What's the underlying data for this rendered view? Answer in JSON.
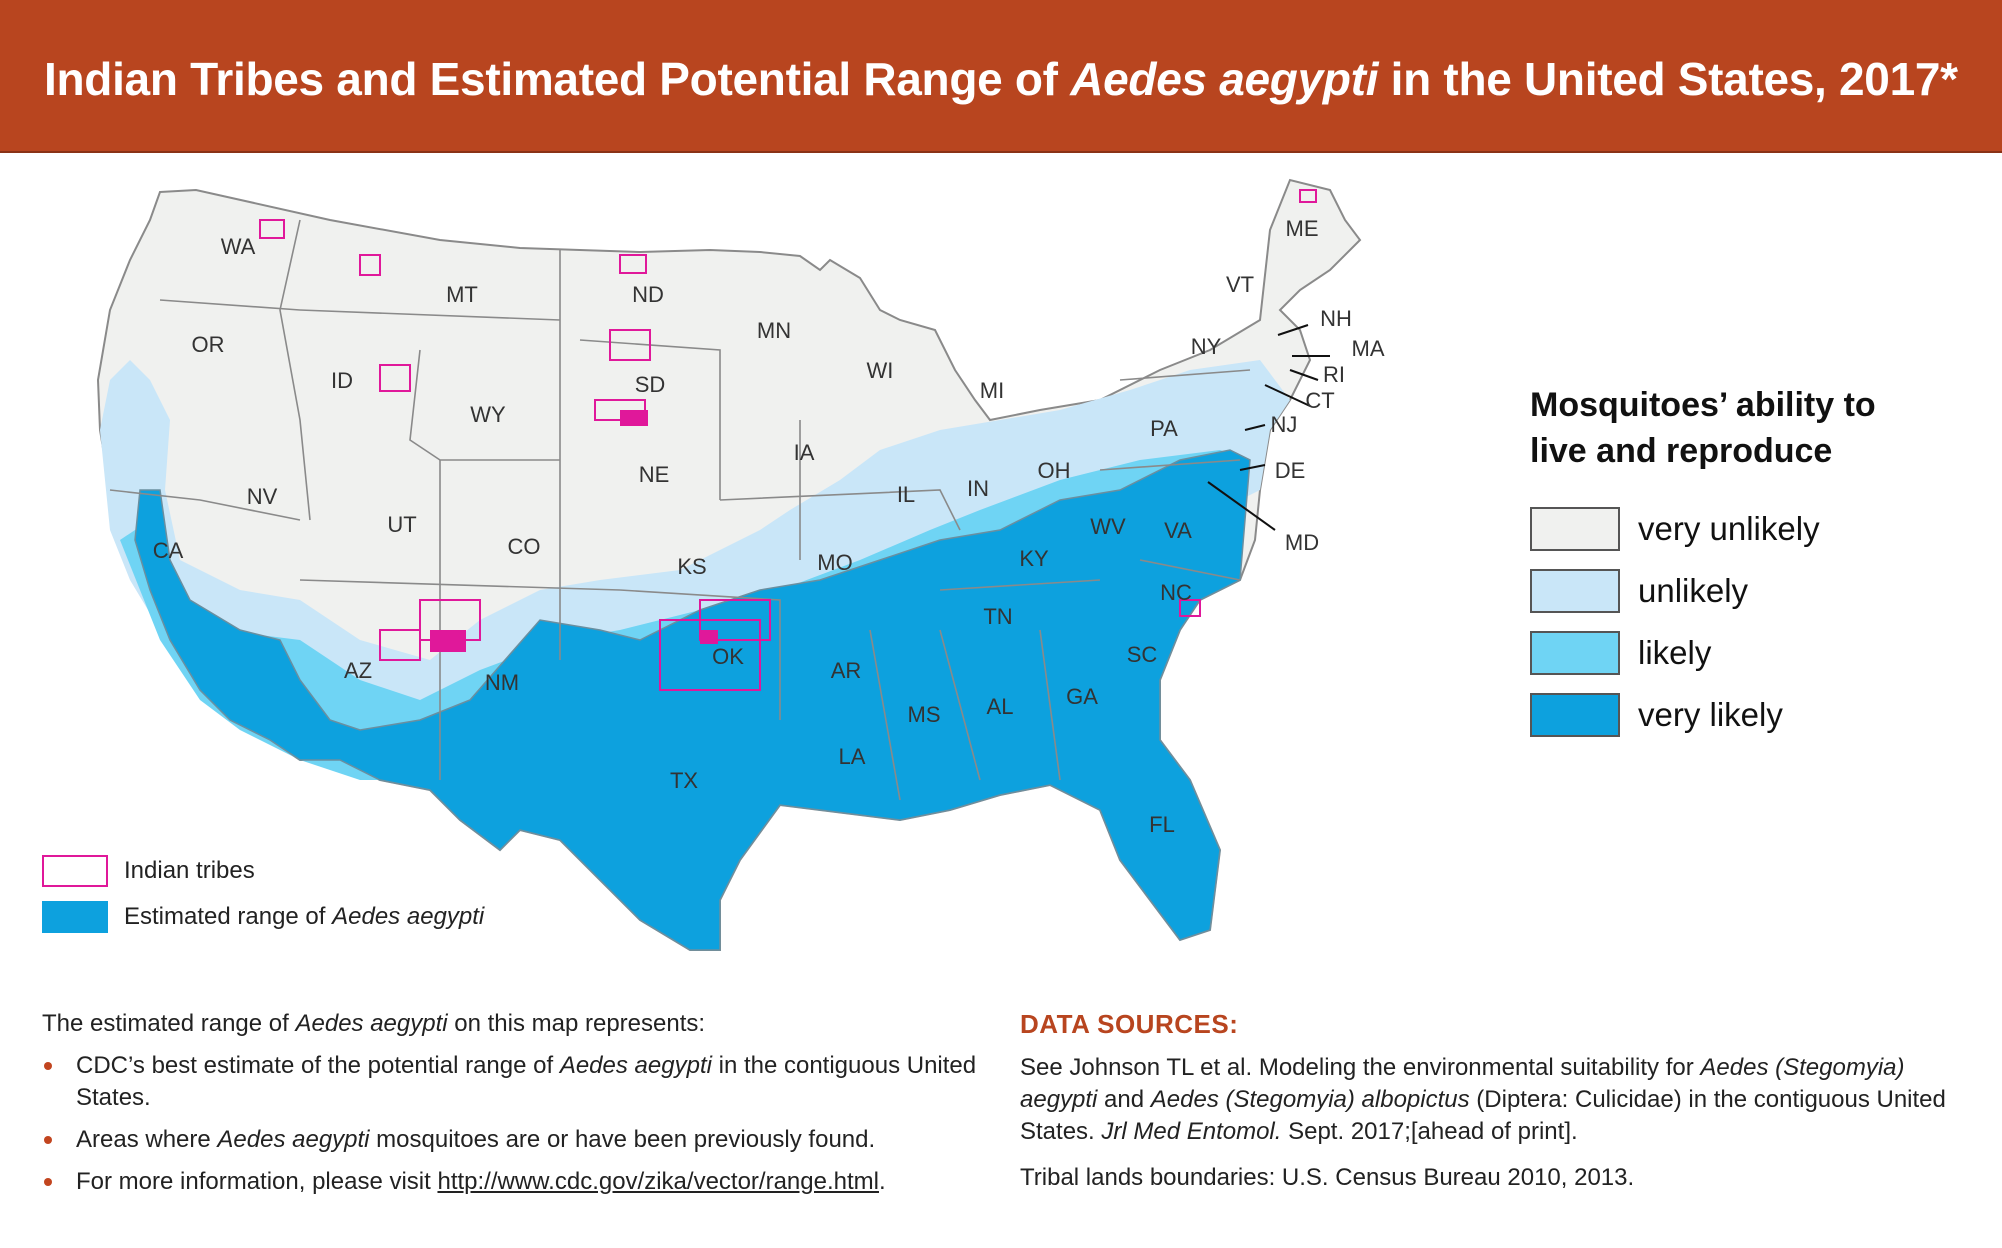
{
  "header": {
    "title_part1": "Indian Tribes and Estimated Potential Range of ",
    "title_italic": "Aedes aegypti",
    "title_part2": "  in the United States, 2017*"
  },
  "colors": {
    "banner": "#b8451f",
    "very_unlikely": "#f0f1ef",
    "unlikely": "#c9e6f8",
    "likely": "#6fd4f4",
    "very_likely": "#0da1de",
    "tribes_outline": "#e0189a",
    "state_border": "#8a8a8a"
  },
  "state_labels": [
    "WA",
    "OR",
    "CA",
    "ID",
    "NV",
    "MT",
    "WY",
    "UT",
    "AZ",
    "CO",
    "NM",
    "ND",
    "SD",
    "NE",
    "KS",
    "OK",
    "TX",
    "MN",
    "IA",
    "MO",
    "AR",
    "LA",
    "WI",
    "IL",
    "MS",
    "MI",
    "IN",
    "KY",
    "TN",
    "AL",
    "OH",
    "GA",
    "FL",
    "WV",
    "SC",
    "NC",
    "VA",
    "PA",
    "NY",
    "VT",
    "ME",
    "NH",
    "MA",
    "RI",
    "CT",
    "NJ",
    "DE",
    "MD"
  ],
  "legend_ability": {
    "title_line1": "Mosquitoes’ ability to",
    "title_line2": "live and reproduce",
    "items": [
      {
        "label": "very unlikely",
        "color": "#f0f1ef"
      },
      {
        "label": "unlikely",
        "color": "#c9e6f8"
      },
      {
        "label": "likely",
        "color": "#6fd4f4"
      },
      {
        "label": "very likely",
        "color": "#0da1de"
      }
    ]
  },
  "legend_map": {
    "tribes": "Indian tribes",
    "range_prefix": "Estimated range of ",
    "range_italic": "Aedes aegypti"
  },
  "notes": {
    "intro_prefix": "The estimated range of ",
    "intro_italic": "Aedes aegypti",
    "intro_suffix": " on this map represents:",
    "b1_prefix": "CDC’s best estimate of the potential range of ",
    "b1_italic": "Aedes aegypti",
    "b1_suffix": " in the contiguous United States.",
    "b2_prefix": "Areas where ",
    "b2_italic": "Aedes aegypti",
    "b2_suffix": " mosquitoes are or have been previously found.",
    "b3_prefix": "For more information, please visit ",
    "b3_link": "http://www.cdc.gov/zika/vector/range.html",
    "b3_suffix": "."
  },
  "sources": {
    "title": "DATA SOURCES:",
    "p1_a": "See Johnson TL et al.  Modeling the environmental suitability for ",
    "p1_i1": "Aedes (Stegomyia) aegypti",
    "p1_b": " and ",
    "p1_i2": "Aedes (Stegomyia) albopictus",
    "p1_c": " (Diptera: Culicidae) in the contiguous United States. ",
    "p1_i3": "Jrl Med Entomol.",
    "p1_d": " Sept. 2017;[ahead of print].",
    "p2": "Tribal lands boundaries: U.S. Census Bureau 2010, 2013."
  }
}
